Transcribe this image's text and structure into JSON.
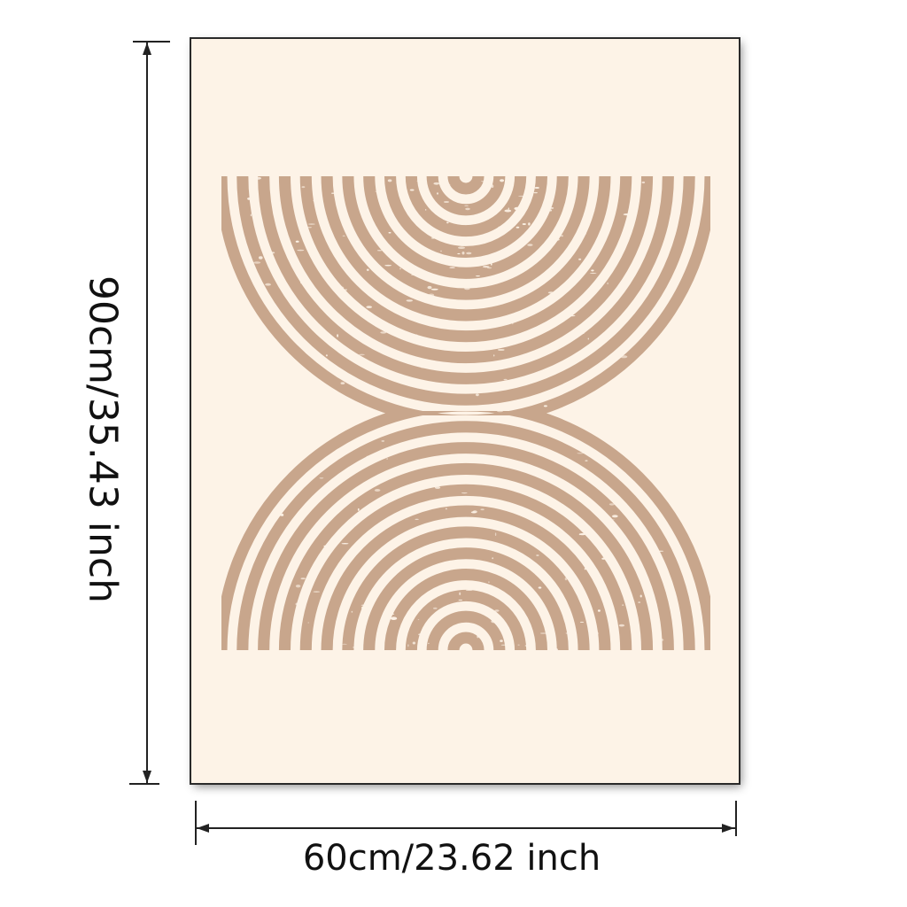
{
  "dimensions": {
    "height_label": "90cm/35.43 inch",
    "width_label": "60cm/23.62 inch"
  },
  "artwork": {
    "background_color": "#fdf3e7",
    "stroke_color": "#c8a68c",
    "frame_color": "#2a2a2a",
    "top_arc_rings": 12,
    "bottom_arc_rings": 12
  }
}
